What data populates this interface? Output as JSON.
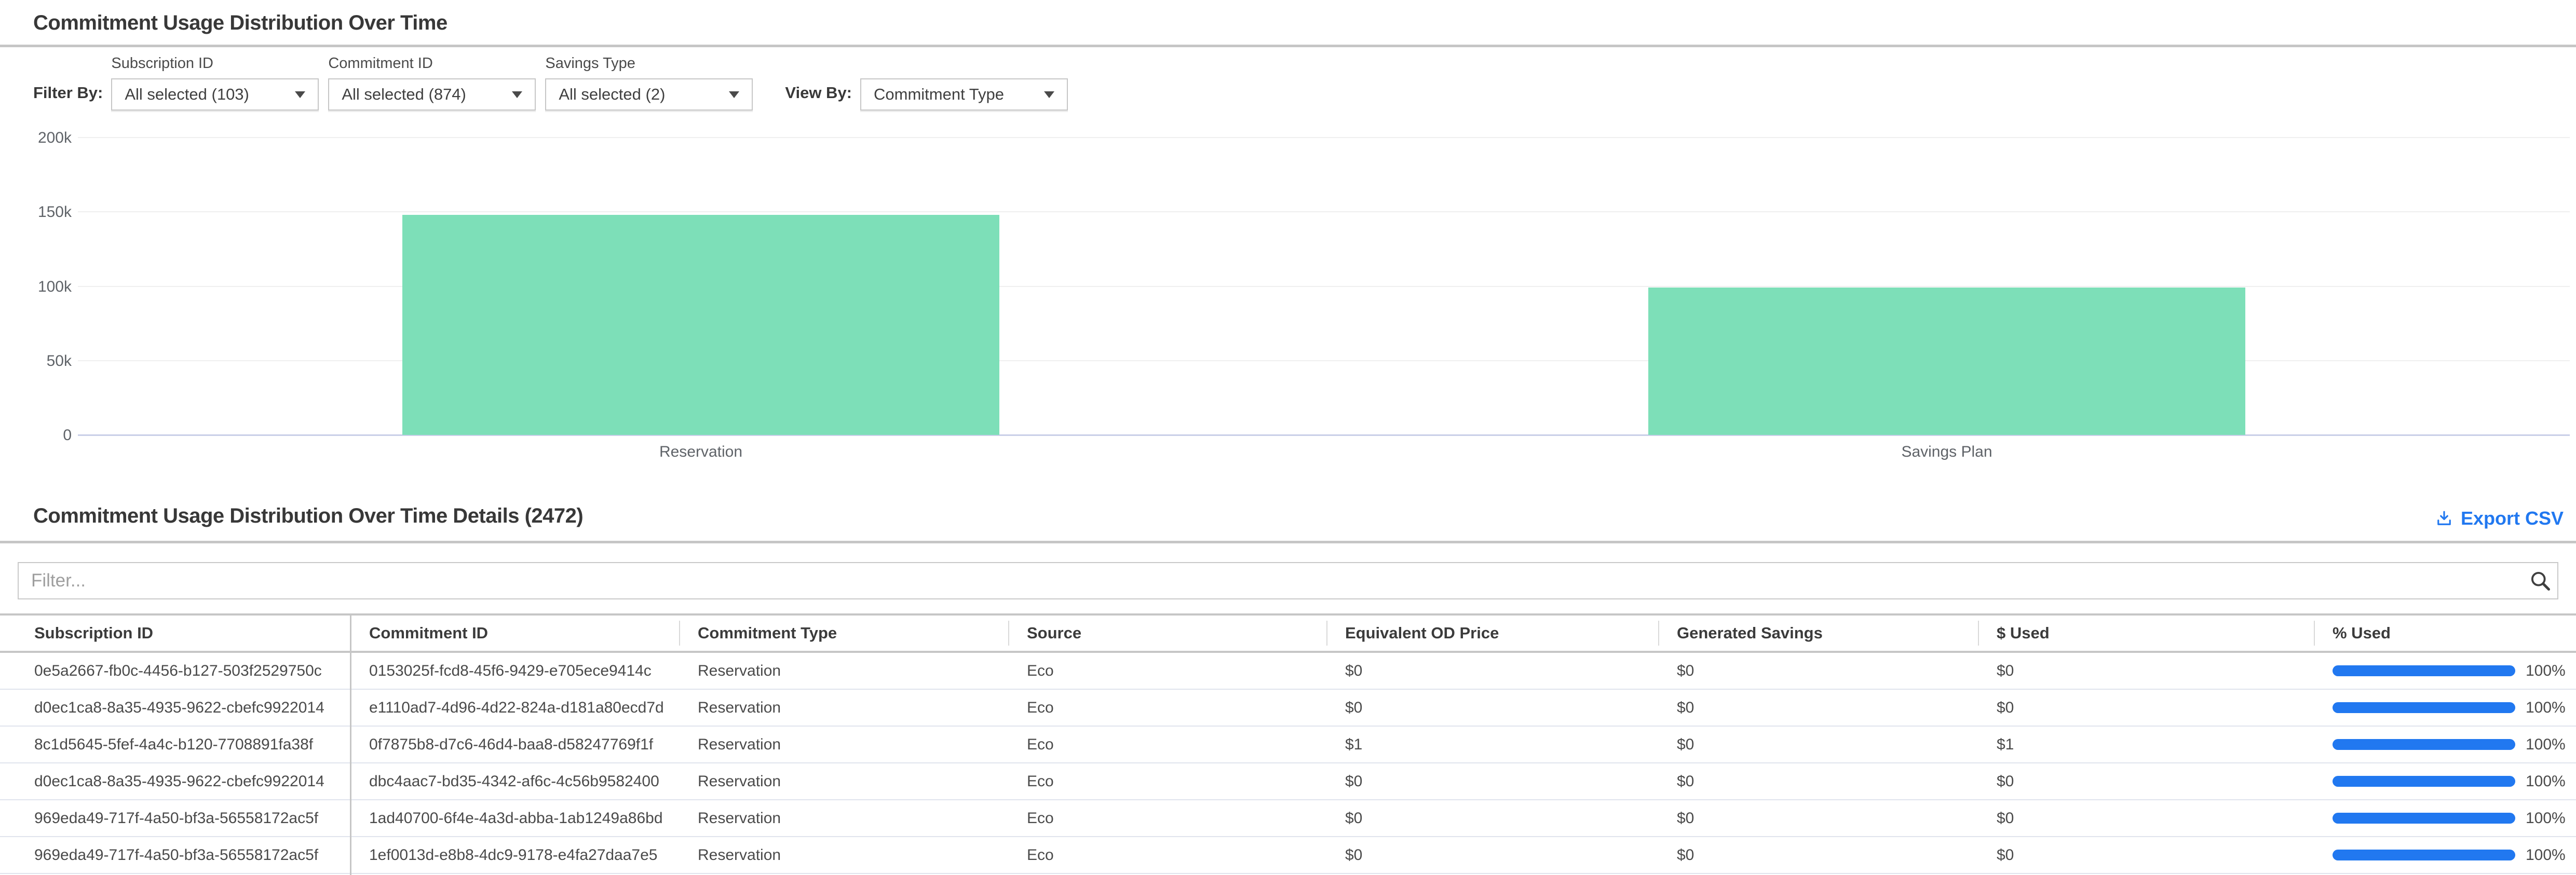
{
  "chart_section": {
    "title": "Commitment Usage Distribution Over Time",
    "filter_by_label": "Filter By:",
    "view_by_label": "View By:",
    "view_by_value": "Commitment Type",
    "filters": [
      {
        "label": "Subscription ID",
        "value": "All selected (103)"
      },
      {
        "label": "Commitment ID",
        "value": "All selected (874)"
      },
      {
        "label": "Savings Type",
        "value": "All selected (2)"
      }
    ]
  },
  "chart_data": {
    "type": "bar",
    "title": "Commitment Usage Distribution Over Time",
    "categories": [
      "Reservation",
      "Savings Plan"
    ],
    "values": [
      148000,
      99000
    ],
    "xlabel": "",
    "ylabel": "",
    "ylim": [
      0,
      200000
    ],
    "yticks": [
      {
        "value": 0,
        "label": "0"
      },
      {
        "value": 50000,
        "label": "50k"
      },
      {
        "value": 100000,
        "label": "100k"
      },
      {
        "value": 150000,
        "label": "150k"
      },
      {
        "value": 200000,
        "label": "200k"
      }
    ],
    "grid": true,
    "legend": false,
    "bar_color": "#7ddfb8"
  },
  "details": {
    "title": "Commitment Usage Distribution Over Time Details (2472)",
    "export_label": "Export CSV",
    "filter_placeholder": "Filter...",
    "table": {
      "columns": [
        "Subscription ID",
        "Commitment ID",
        "Commitment Type",
        "Source",
        "Equivalent OD Price",
        "Generated Savings",
        "$ Used",
        "% Used"
      ],
      "rows": [
        {
          "subscription_id": "0e5a2667-fb0c-4456-b127-503f2529750c",
          "commitment_id": "0153025f-fcd8-45f6-9429-e705ece9414c",
          "commitment_type": "Reservation",
          "source": "Eco",
          "equivalent_od_price": "$0",
          "generated_savings": "$0",
          "used_dollars": "$0",
          "used_pct": "100%",
          "used_pct_value": 100
        },
        {
          "subscription_id": "d0ec1ca8-8a35-4935-9622-cbefc9922014",
          "commitment_id": "e1110ad7-4d96-4d22-824a-d181a80ecd7d",
          "commitment_type": "Reservation",
          "source": "Eco",
          "equivalent_od_price": "$0",
          "generated_savings": "$0",
          "used_dollars": "$0",
          "used_pct": "100%",
          "used_pct_value": 100
        },
        {
          "subscription_id": "8c1d5645-5fef-4a4c-b120-7708891fa38f",
          "commitment_id": "0f7875b8-d7c6-46d4-baa8-d58247769f1f",
          "commitment_type": "Reservation",
          "source": "Eco",
          "equivalent_od_price": "$1",
          "generated_savings": "$0",
          "used_dollars": "$1",
          "used_pct": "100%",
          "used_pct_value": 100
        },
        {
          "subscription_id": "d0ec1ca8-8a35-4935-9622-cbefc9922014",
          "commitment_id": "dbc4aac7-bd35-4342-af6c-4c56b9582400",
          "commitment_type": "Reservation",
          "source": "Eco",
          "equivalent_od_price": "$0",
          "generated_savings": "$0",
          "used_dollars": "$0",
          "used_pct": "100%",
          "used_pct_value": 100
        },
        {
          "subscription_id": "969eda49-717f-4a50-bf3a-56558172ac5f",
          "commitment_id": "1ad40700-6f4e-4a3d-abba-1ab1249a86bd",
          "commitment_type": "Reservation",
          "source": "Eco",
          "equivalent_od_price": "$0",
          "generated_savings": "$0",
          "used_dollars": "$0",
          "used_pct": "100%",
          "used_pct_value": 100
        },
        {
          "subscription_id": "969eda49-717f-4a50-bf3a-56558172ac5f",
          "commitment_id": "1ef0013d-e8b8-4dc9-9178-e4fa27daa7e5",
          "commitment_type": "Reservation",
          "source": "Eco",
          "equivalent_od_price": "$0",
          "generated_savings": "$0",
          "used_dollars": "$0",
          "used_pct": "100%",
          "used_pct_value": 100
        }
      ]
    }
  },
  "colors": {
    "accent_blue": "#2178f0",
    "bar_green": "#7ddfb8",
    "progress_blue": "#2178f0"
  }
}
